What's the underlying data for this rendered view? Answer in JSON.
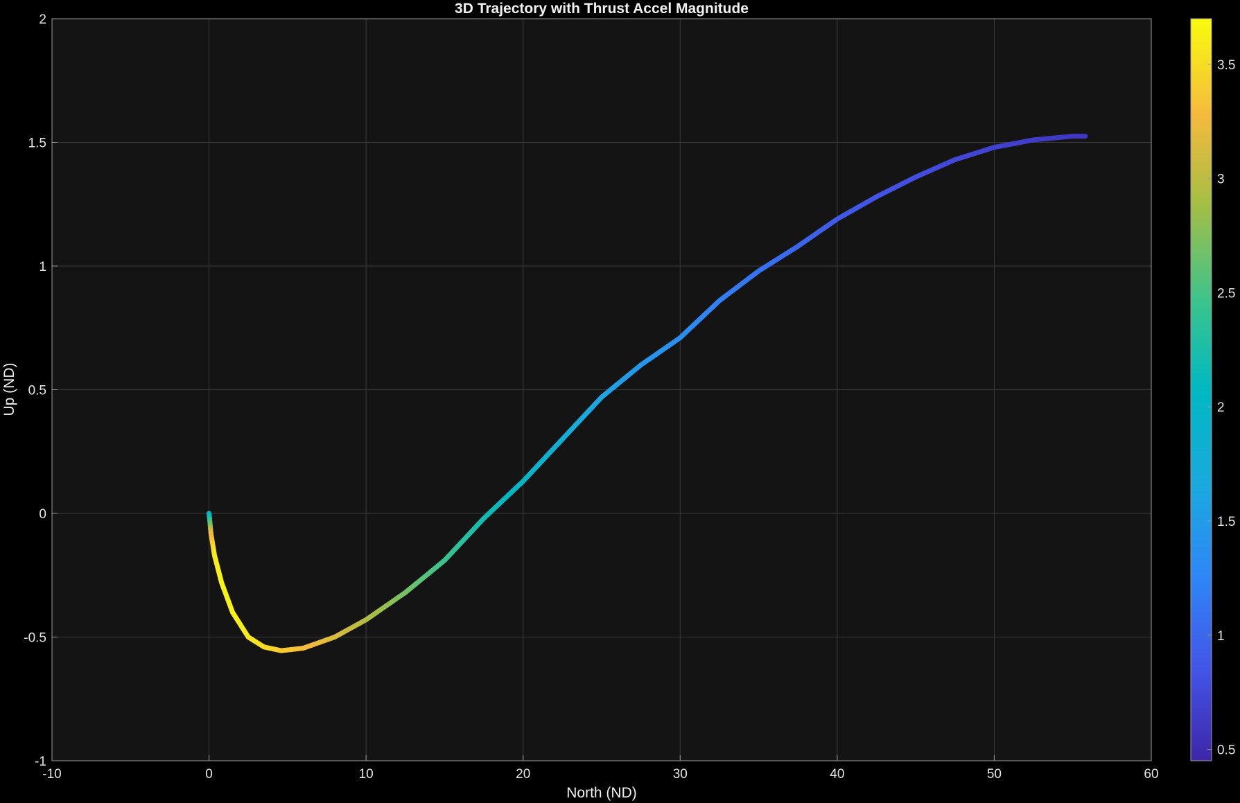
{
  "chart_data": {
    "type": "scatter",
    "title": "3D Trajectory with Thrust Accel Magnitude",
    "xlabel": "North (ND)",
    "ylabel": "Up (ND)",
    "xlim": [
      -10,
      60
    ],
    "ylim": [
      -1,
      2
    ],
    "xticks": [
      -10,
      0,
      10,
      20,
      30,
      40,
      50,
      60
    ],
    "yticks": [
      -1,
      -0.5,
      0,
      0.5,
      1,
      1.5,
      2
    ],
    "xtick_labels": [
      "-10",
      "0",
      "10",
      "20",
      "30",
      "40",
      "50",
      "60"
    ],
    "ytick_labels": [
      "-1",
      "-0.5",
      "0",
      "0.5",
      "1",
      "1.5",
      "2"
    ],
    "grid": true,
    "colorbar": {
      "colormap": "parula",
      "range": [
        0.45,
        3.7
      ],
      "ticks": [
        0.5,
        1,
        1.5,
        2,
        2.5,
        3,
        3.5
      ],
      "tick_labels": [
        "0.5",
        "1",
        "1.5",
        "2",
        "2.5",
        "3",
        "3.5"
      ],
      "position": "right"
    },
    "series": [
      {
        "points": [
          {
            "x": 0.0,
            "y": 0.0,
            "c": 1.9
          },
          {
            "x": 0.05,
            "y": -0.03,
            "c": 2.4
          },
          {
            "x": 0.12,
            "y": -0.08,
            "c": 3.2
          },
          {
            "x": 0.35,
            "y": -0.17,
            "c": 3.6
          },
          {
            "x": 0.8,
            "y": -0.28,
            "c": 3.65
          },
          {
            "x": 1.5,
            "y": -0.4,
            "c": 3.65
          },
          {
            "x": 2.5,
            "y": -0.5,
            "c": 3.6
          },
          {
            "x": 3.5,
            "y": -0.54,
            "c": 3.5
          },
          {
            "x": 4.6,
            "y": -0.555,
            "c": 3.4
          },
          {
            "x": 6.0,
            "y": -0.545,
            "c": 3.3
          },
          {
            "x": 8.0,
            "y": -0.5,
            "c": 3.15
          },
          {
            "x": 10.0,
            "y": -0.43,
            "c": 2.95
          },
          {
            "x": 12.5,
            "y": -0.32,
            "c": 2.7
          },
          {
            "x": 15.0,
            "y": -0.19,
            "c": 2.45
          },
          {
            "x": 17.5,
            "y": -0.02,
            "c": 2.2
          },
          {
            "x": 20.0,
            "y": 0.13,
            "c": 2.0
          },
          {
            "x": 22.5,
            "y": 0.3,
            "c": 1.8
          },
          {
            "x": 25.0,
            "y": 0.47,
            "c": 1.6
          },
          {
            "x": 27.5,
            "y": 0.6,
            "c": 1.45
          },
          {
            "x": 30.0,
            "y": 0.71,
            "c": 1.35
          },
          {
            "x": 32.5,
            "y": 0.86,
            "c": 1.2
          },
          {
            "x": 35.0,
            "y": 0.98,
            "c": 1.1
          },
          {
            "x": 37.5,
            "y": 1.08,
            "c": 1.0
          },
          {
            "x": 40.0,
            "y": 1.19,
            "c": 0.9
          },
          {
            "x": 42.5,
            "y": 1.28,
            "c": 0.85
          },
          {
            "x": 45.0,
            "y": 1.36,
            "c": 0.8
          },
          {
            "x": 47.5,
            "y": 1.43,
            "c": 0.75
          },
          {
            "x": 50.0,
            "y": 1.48,
            "c": 0.7
          },
          {
            "x": 52.5,
            "y": 1.51,
            "c": 0.65
          },
          {
            "x": 55.0,
            "y": 1.525,
            "c": 0.6
          },
          {
            "x": 55.8,
            "y": 1.525,
            "c": 0.6
          }
        ]
      }
    ]
  }
}
